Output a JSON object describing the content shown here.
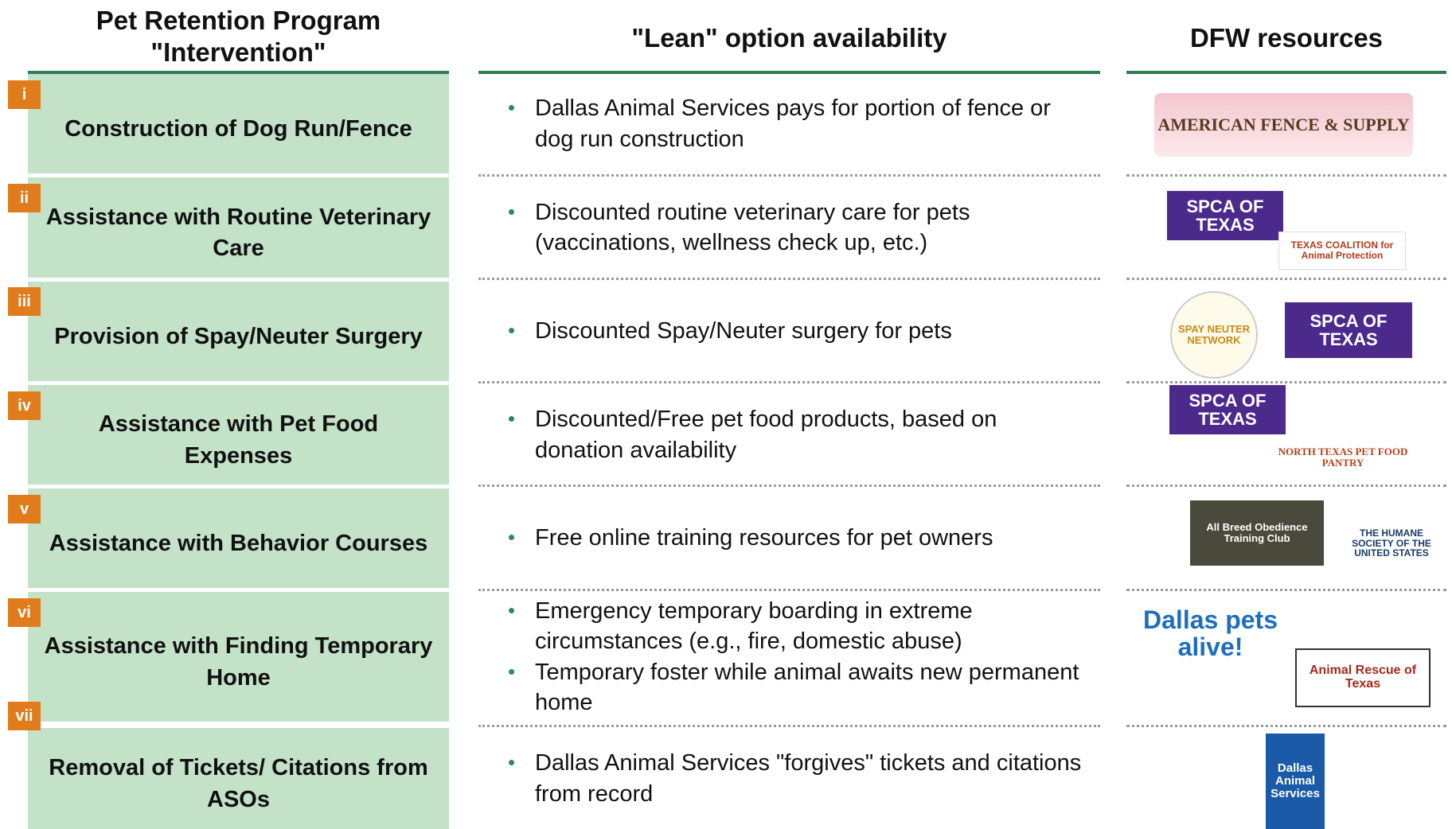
{
  "header": {
    "intervention": "Pet Retention Program \"Intervention\"",
    "lean": "\"Lean\" option availability",
    "resources": "DFW resources"
  },
  "rows": [
    {
      "badge": "i",
      "intervention": "Construction of Dog Run/Fence",
      "bullets": [
        "Dallas Animal Services pays for portion of fence or dog run construction"
      ],
      "logos": [
        "AMERICAN FENCE & SUPPLY"
      ]
    },
    {
      "badge": "ii",
      "intervention": "Assistance with Routine Veterinary Care",
      "bullets": [
        "Discounted routine veterinary care for pets (vaccinations, wellness check up, etc.)"
      ],
      "logos": [
        "SPCA OF TEXAS",
        "TEXAS COALITION for Animal Protection"
      ]
    },
    {
      "badge": "iii",
      "intervention": "Provision of Spay/Neuter Surgery",
      "bullets": [
        "Discounted Spay/Neuter surgery for pets"
      ],
      "logos": [
        "SPAY NEUTER NETWORK",
        "SPCA OF TEXAS"
      ]
    },
    {
      "badge": "iv",
      "intervention": "Assistance with Pet Food Expenses",
      "bullets": [
        "Discounted/Free pet food products, based on donation availability"
      ],
      "logos": [
        "SPCA OF TEXAS",
        "NORTH TEXAS PET FOOD PANTRY"
      ]
    },
    {
      "badge": "v",
      "intervention": "Assistance with Behavior Courses",
      "bullets": [
        "Free online training resources for pet owners"
      ],
      "logos": [
        "All Breed Obedience Training Club",
        "THE HUMANE SOCIETY OF THE UNITED STATES"
      ]
    },
    {
      "badge": "vi",
      "intervention": "Assistance with Finding Temporary Home",
      "bullets": [
        "Emergency temporary boarding in extreme circumstances (e.g., fire, domestic abuse)",
        "Temporary foster while animal awaits new permanent home"
      ],
      "logos": [
        "Dallas pets alive!",
        "Animal Rescue of Texas"
      ]
    },
    {
      "badge": "vii",
      "intervention": "Removal of Tickets/ Citations from ASOs",
      "bullets": [
        "Dallas Animal Services \"forgives\" tickets and citations from record"
      ],
      "logos": [
        "Dallas Animal Services"
      ]
    }
  ]
}
